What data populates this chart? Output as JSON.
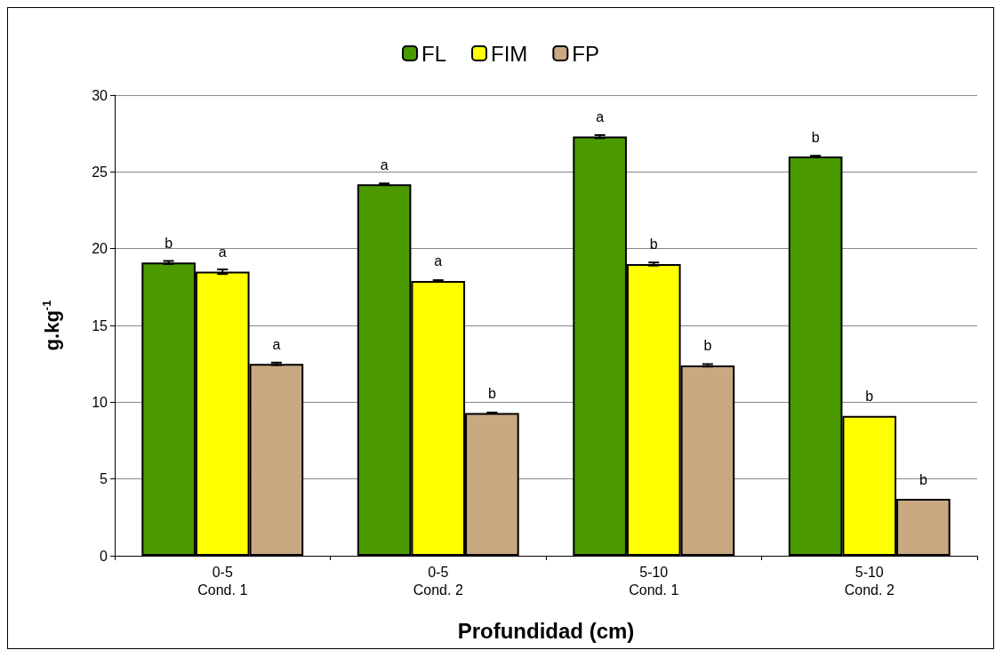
{
  "chart_data": {
    "type": "bar",
    "xlabel": "Profundidad (cm)",
    "ylabel": "g.kg$^{-1}$",
    "categories": [
      "0-5\nCond. 1",
      "0-5\nCond. 2",
      "5-10\nCond. 1",
      "5-10\nCond. 2"
    ],
    "series": [
      {
        "name": "FL",
        "color": "#4a9a00",
        "values": [
          19.1,
          24.2,
          27.3,
          26.0
        ],
        "errors": [
          0.1,
          0.05,
          0.1,
          0.05
        ],
        "value_labels": [
          "b",
          "a",
          "a",
          "b"
        ]
      },
      {
        "name": "FIM",
        "color": "#ffff00",
        "values": [
          18.5,
          17.9,
          19.0,
          9.1
        ],
        "errors": [
          0.15,
          0.05,
          0.1,
          null
        ],
        "value_labels": [
          "a",
          "a",
          "b",
          "b"
        ]
      },
      {
        "name": "FP",
        "color": "#c9a882",
        "values": [
          12.5,
          9.3,
          12.4,
          3.7
        ],
        "errors": [
          0.08,
          0.03,
          0.08,
          null
        ],
        "value_labels": [
          "a",
          "b",
          "b",
          "b"
        ]
      }
    ],
    "ylim": [
      0,
      30
    ],
    "yticks": [
      0,
      5,
      10,
      15,
      20,
      25,
      30
    ],
    "grid": "y",
    "legend": "top"
  }
}
